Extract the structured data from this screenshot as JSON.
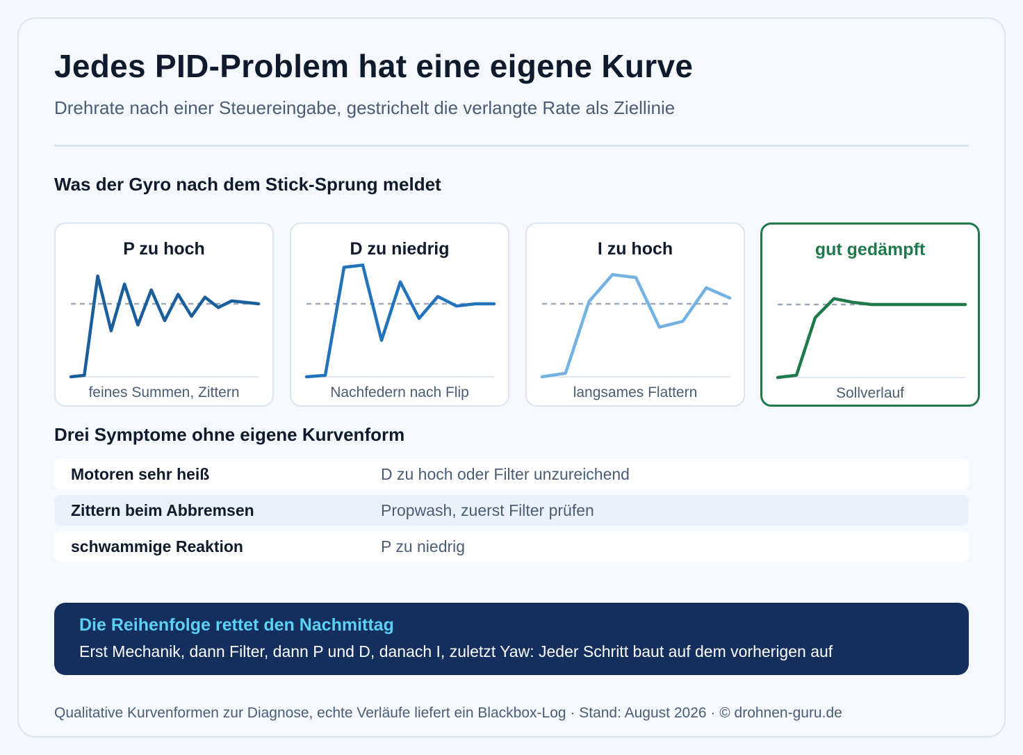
{
  "header": {
    "title": "Jedes PID-Problem hat eine eigene Kurve",
    "subtitle": "Drehrate nach einer Steuereingabe, gestrichelt die verlangte Rate als Ziellinie"
  },
  "sections": {
    "curves_heading": "Was der Gyro nach dem Stick-Sprung meldet",
    "symptoms_heading": "Drei Symptome ohne eigene Kurvenform"
  },
  "chart_data": [
    {
      "type": "line",
      "title": "P zu hoch",
      "caption": "feines Summen, Zittern",
      "color": "#1a5e9c",
      "target": 1.0,
      "ylim": [
        0,
        1.6
      ],
      "x": [
        0,
        1,
        2,
        3,
        4,
        5,
        6,
        7,
        8,
        9,
        10,
        11,
        12,
        13,
        14
      ],
      "values": [
        0,
        0.02,
        1.38,
        0.63,
        1.27,
        0.71,
        1.19,
        0.77,
        1.13,
        0.83,
        1.09,
        0.95,
        1.04,
        1.02,
        1.0
      ]
    },
    {
      "type": "line",
      "title": "D zu niedrig",
      "caption": "Nachfedern nach Flip",
      "color": "#2273bb",
      "target": 1.0,
      "ylim": [
        0,
        1.6
      ],
      "x": [
        0,
        1,
        2,
        3,
        4,
        5,
        6,
        7,
        8,
        9,
        10
      ],
      "values": [
        0,
        0.02,
        1.5,
        1.53,
        0.5,
        1.3,
        0.8,
        1.1,
        0.97,
        1.0,
        1.0
      ]
    },
    {
      "type": "line",
      "title": "I zu hoch",
      "caption": "langsames Flattern",
      "color": "#72b3e3",
      "target": 1.0,
      "ylim": [
        0,
        1.6
      ],
      "x": [
        0,
        1,
        2,
        3,
        4,
        5,
        6,
        7,
        8
      ],
      "values": [
        0,
        0.05,
        1.03,
        1.4,
        1.36,
        0.68,
        0.76,
        1.22,
        1.08
      ]
    },
    {
      "type": "line",
      "title": "gut gedämpft",
      "caption": "Sollverlauf",
      "color": "#1f7a4b",
      "target": 1.0,
      "ylim": [
        0,
        1.6
      ],
      "x": [
        0,
        1,
        2,
        3,
        4,
        5,
        6,
        7,
        8,
        9,
        10
      ],
      "values": [
        0,
        0.03,
        0.82,
        1.08,
        1.03,
        1.0,
        1.0,
        1.0,
        1.0,
        1.0,
        1.0
      ]
    }
  ],
  "symptoms": [
    {
      "name": "Motoren sehr heiß",
      "desc": "D zu hoch oder Filter unzureichend"
    },
    {
      "name": "Zittern beim Abbremsen",
      "desc": "Propwash, zuerst Filter prüfen"
    },
    {
      "name": "schwammige Reaktion",
      "desc": "P zu niedrig"
    }
  ],
  "callout": {
    "heading": "Die Reihenfolge rettet den Nachmittag",
    "text": "Erst Mechanik, dann Filter, dann P und D, danach I, zuletzt Yaw: Jeder Schritt baut auf dem vorherigen auf"
  },
  "footer": "Qualitative Kurvenformen zur Diagnose, echte Verläufe liefert ein Blackbox-Log · Stand: August 2026 · © drohnen-guru.de",
  "colors": {
    "target_line": "#9aa7b8",
    "axis_line": "#e2e8ef",
    "good": "#1f7a4b",
    "callout_bg": "#142e5e",
    "callout_heading": "#5cd0f5"
  }
}
